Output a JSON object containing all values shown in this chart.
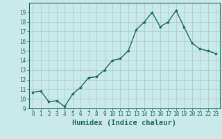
{
  "xlabel": "Humidex (Indice chaleur)",
  "ylabel": "",
  "x_values": [
    0,
    1,
    2,
    3,
    4,
    5,
    6,
    7,
    8,
    9,
    10,
    11,
    12,
    13,
    14,
    15,
    16,
    17,
    18,
    19,
    20,
    21,
    22,
    23
  ],
  "y_values": [
    10.7,
    10.8,
    9.7,
    9.8,
    9.2,
    10.5,
    11.2,
    12.2,
    12.3,
    13.0,
    14.0,
    14.2,
    15.0,
    17.2,
    18.0,
    19.0,
    17.5,
    18.0,
    19.2,
    17.5,
    15.8,
    15.2,
    15.0,
    14.7
  ],
  "line_color": "#1a6b5a",
  "marker": "*",
  "marker_size": 3,
  "bg_color": "#cce9e9",
  "grid_color": "#aad4d4",
  "ylim": [
    9,
    20
  ],
  "xlim": [
    -0.5,
    23.5
  ],
  "yticks": [
    9,
    10,
    11,
    12,
    13,
    14,
    15,
    16,
    17,
    18,
    19
  ],
  "xticks": [
    0,
    1,
    2,
    3,
    4,
    5,
    6,
    7,
    8,
    9,
    10,
    11,
    12,
    13,
    14,
    15,
    16,
    17,
    18,
    19,
    20,
    21,
    22,
    23
  ],
  "tick_color": "#1a6b5a",
  "label_color": "#1a6b5a",
  "tick_fontsize": 5.5,
  "xlabel_fontsize": 7.5,
  "spine_color": "#1a6b5a",
  "linewidth": 1.0
}
